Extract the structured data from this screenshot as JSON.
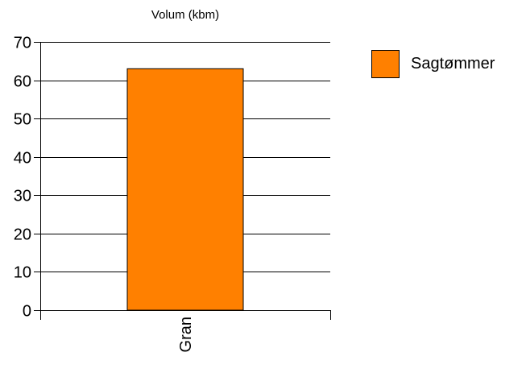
{
  "chart_data": {
    "type": "bar",
    "title": "Volum (kbm)",
    "xlabel": "",
    "ylabel": "",
    "categories": [
      "Gran"
    ],
    "series": [
      {
        "name": "Sagtømmer",
        "values": [
          63
        ],
        "color": "#ff8000"
      }
    ],
    "ylim": [
      0,
      70
    ],
    "yticks": [
      0,
      10,
      20,
      30,
      40,
      50,
      60,
      70
    ],
    "grid": true,
    "legend_position": "right"
  }
}
